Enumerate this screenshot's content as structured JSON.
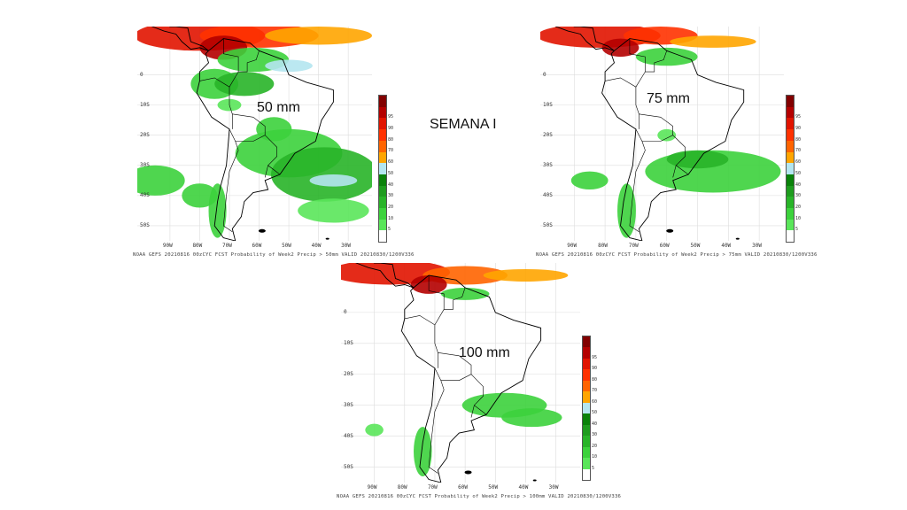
{
  "slide": {
    "title": "SEMANA I"
  },
  "colorbar": {
    "ticks": [
      "5",
      "10",
      "20",
      "30",
      "40",
      "50",
      "60",
      "70",
      "80",
      "90",
      "95"
    ],
    "colors": [
      "#ffffff",
      "#5ae65a",
      "#3cd23c",
      "#28b428",
      "#1e9c1e",
      "#0a820a",
      "#b4e6f0",
      "#ffa500",
      "#ff6400",
      "#ff3200",
      "#e11400",
      "#b40000",
      "#820000"
    ]
  },
  "panels": [
    {
      "threshold_label": "50 mm",
      "footer": "NOAA GEFS 20210816 00zCYC FCST Probability of Week2 Precip > 50mm  VALID 20210830/1200V336"
    },
    {
      "threshold_label": "75 mm",
      "footer": "NOAA GEFS 20210816 00zCYC FCST Probability of Week2 Precip > 75mm  VALID 20210830/1200V336"
    },
    {
      "threshold_label": "100 mm",
      "footer": "NOAA GEFS 20210816 00zCYC FCST Probability of Week2 Precip > 100mm  VALID 20210830/1200V336"
    }
  ],
  "axes": {
    "lat_labels": [
      "0",
      "10S",
      "20S",
      "30S",
      "40S",
      "50S"
    ],
    "lon_labels": [
      "90W",
      "80W",
      "70W",
      "60W",
      "50W",
      "40W",
      "30W"
    ]
  }
}
